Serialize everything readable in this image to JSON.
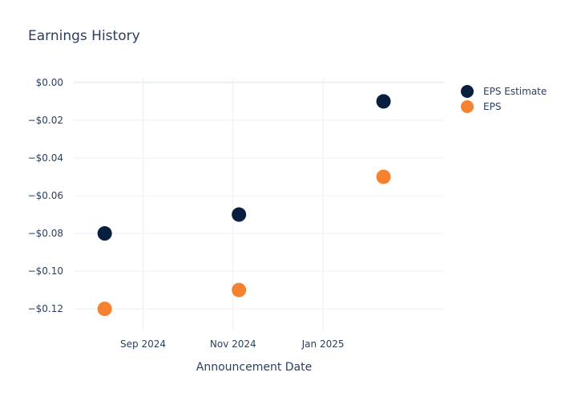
{
  "chart_data": {
    "type": "scatter",
    "title": "Earnings History",
    "xlabel": "Announcement Date",
    "ylabel": "",
    "x_ticks": [
      {
        "date": "2024-09-01",
        "label": "Sep 2024"
      },
      {
        "date": "2024-11-01",
        "label": "Nov 2024"
      },
      {
        "date": "2025-01-01",
        "label": "Jan 2025"
      }
    ],
    "y_ticks": [
      {
        "value": 0.0,
        "label": "$0.00"
      },
      {
        "value": -0.02,
        "label": "−$0.02"
      },
      {
        "value": -0.04,
        "label": "−$0.04"
      },
      {
        "value": -0.06,
        "label": "−$0.06"
      },
      {
        "value": -0.08,
        "label": "−$0.08"
      },
      {
        "value": -0.1,
        "label": "−$0.10"
      },
      {
        "value": -0.12,
        "label": "−$0.12"
      }
    ],
    "xlim": [
      "2024-07-16",
      "2025-03-24"
    ],
    "ylim": [
      -0.131,
      0.0025
    ],
    "grid": true,
    "legend_position": "top-right",
    "series": [
      {
        "name": "EPS Estimate",
        "color": "#081f3f",
        "points": [
          {
            "x": "2024-08-06",
            "y": -0.08
          },
          {
            "x": "2024-11-05",
            "y": -0.07
          },
          {
            "x": "2025-02-11",
            "y": -0.01
          }
        ]
      },
      {
        "name": "EPS",
        "color": "#f58231",
        "points": [
          {
            "x": "2024-08-06",
            "y": -0.12
          },
          {
            "x": "2024-11-05",
            "y": -0.11
          },
          {
            "x": "2025-02-11",
            "y": -0.05
          }
        ]
      }
    ]
  }
}
